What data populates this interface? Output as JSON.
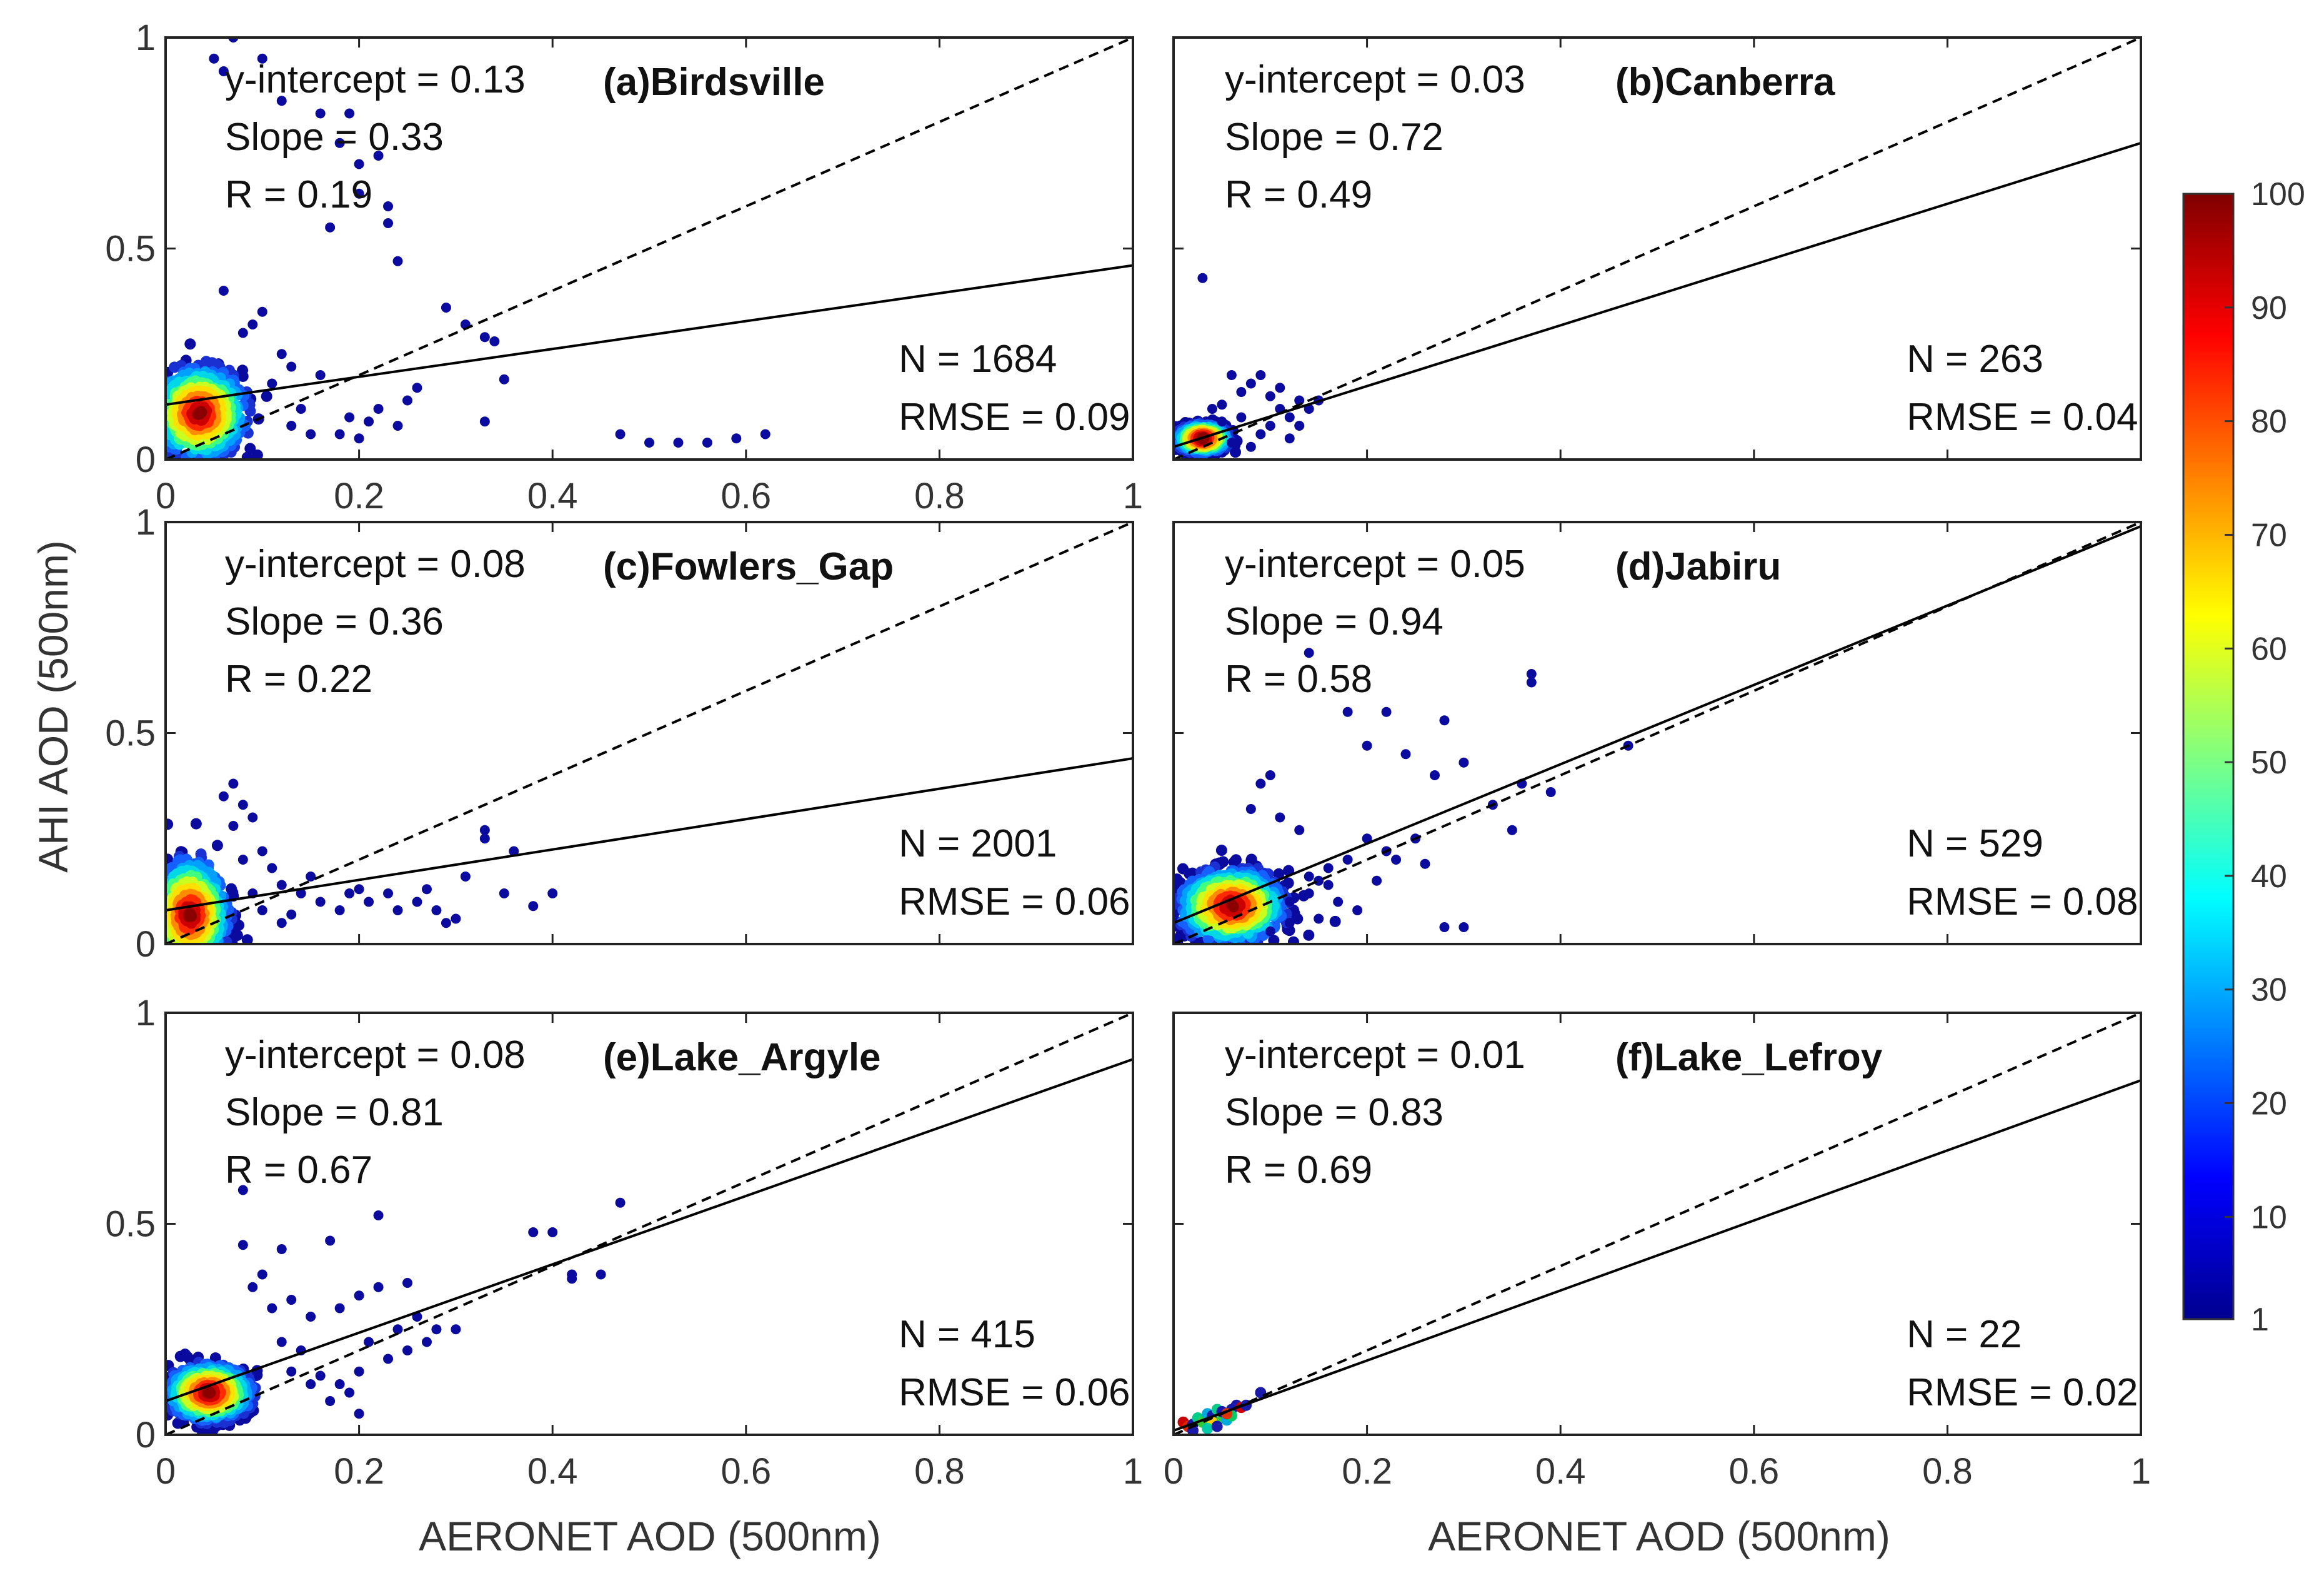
{
  "figure": {
    "ylabel": "AHI AOD (500nm)",
    "xlabel": "AERONET AOD (500nm)"
  },
  "chart_data": [
    {
      "type": "scatter",
      "title": "(a)Birdsville",
      "stats": {
        "intercept_text": "y-intercept = 0.13",
        "slope_text": "Slope = 0.33",
        "r_text": "R = 0.19",
        "n_text": "N = 1684",
        "rmse_text": "RMSE = 0.09"
      },
      "fit": {
        "intercept": 0.13,
        "slope": 0.33
      },
      "xlim": [
        0,
        1
      ],
      "ylim": [
        0,
        1
      ],
      "xticks": [
        0,
        0.2,
        0.4,
        0.6,
        0.8,
        1
      ],
      "yticks": [
        0,
        0.5,
        1
      ],
      "xtick_labels": [
        "0",
        "0.2",
        "0.4",
        "0.6",
        "0.8",
        "1"
      ],
      "ytick_labels": [
        "0",
        "0.5",
        "1"
      ],
      "cluster": {
        "x": 0.035,
        "y": 0.11,
        "sx": 0.022,
        "sy": 0.05
      },
      "outliers": [
        [
          0.05,
          0.95
        ],
        [
          0.07,
          1.0
        ],
        [
          0.1,
          0.95
        ],
        [
          0.06,
          0.92
        ],
        [
          0.12,
          0.85
        ],
        [
          0.16,
          0.82
        ],
        [
          0.19,
          0.82
        ],
        [
          0.18,
          0.75
        ],
        [
          0.2,
          0.7
        ],
        [
          0.22,
          0.72
        ],
        [
          0.23,
          0.6
        ],
        [
          0.23,
          0.56
        ],
        [
          0.17,
          0.55
        ],
        [
          0.2,
          0.63
        ],
        [
          0.24,
          0.47
        ],
        [
          0.29,
          0.36
        ],
        [
          0.31,
          0.32
        ],
        [
          0.33,
          0.29
        ],
        [
          0.34,
          0.28
        ],
        [
          0.35,
          0.19
        ],
        [
          0.33,
          0.09
        ],
        [
          0.26,
          0.17
        ],
        [
          0.25,
          0.14
        ],
        [
          0.22,
          0.12
        ],
        [
          0.2,
          0.05
        ],
        [
          0.18,
          0.06
        ],
        [
          0.16,
          0.2
        ],
        [
          0.15,
          0.06
        ],
        [
          0.14,
          0.12
        ],
        [
          0.13,
          0.08
        ],
        [
          0.21,
          0.09
        ],
        [
          0.47,
          0.06
        ],
        [
          0.5,
          0.04
        ],
        [
          0.53,
          0.04
        ],
        [
          0.56,
          0.04
        ],
        [
          0.59,
          0.05
        ],
        [
          0.62,
          0.06
        ],
        [
          0.11,
          0.18
        ],
        [
          0.12,
          0.25
        ],
        [
          0.09,
          0.32
        ],
        [
          0.08,
          0.3
        ],
        [
          0.06,
          0.4
        ],
        [
          0.1,
          0.35
        ],
        [
          0.13,
          0.22
        ],
        [
          0.19,
          0.1
        ],
        [
          0.24,
          0.08
        ]
      ],
      "outlier_color": "#0a0a9e"
    },
    {
      "type": "scatter",
      "title": "(b)Canberra",
      "stats": {
        "intercept_text": "y-intercept = 0.03",
        "slope_text": "Slope = 0.72",
        "r_text": "R = 0.49",
        "n_text": "N = 263",
        "rmse_text": "RMSE = 0.04"
      },
      "fit": {
        "intercept": 0.03,
        "slope": 0.72
      },
      "xlim": [
        0,
        1
      ],
      "ylim": [
        0,
        1
      ],
      "xticks": [
        0,
        0.2,
        0.4,
        0.6,
        0.8,
        1
      ],
      "yticks": [
        0,
        0.5,
        1
      ],
      "xtick_labels": [],
      "ytick_labels": [],
      "cluster": {
        "x": 0.03,
        "y": 0.05,
        "sx": 0.012,
        "sy": 0.015
      },
      "outliers": [
        [
          0.03,
          0.43
        ],
        [
          0.06,
          0.2
        ],
        [
          0.08,
          0.18
        ],
        [
          0.09,
          0.2
        ],
        [
          0.1,
          0.15
        ],
        [
          0.11,
          0.12
        ],
        [
          0.12,
          0.1
        ],
        [
          0.13,
          0.14
        ],
        [
          0.14,
          0.12
        ],
        [
          0.1,
          0.08
        ],
        [
          0.09,
          0.06
        ],
        [
          0.07,
          0.1
        ],
        [
          0.05,
          0.13
        ],
        [
          0.04,
          0.12
        ],
        [
          0.06,
          0.04
        ],
        [
          0.08,
          0.03
        ],
        [
          0.12,
          0.05
        ],
        [
          0.11,
          0.17
        ],
        [
          0.05,
          0.09
        ],
        [
          0.07,
          0.16
        ],
        [
          0.13,
          0.08
        ],
        [
          0.15,
          0.14
        ]
      ],
      "outlier_color": "#0a0a9e"
    },
    {
      "type": "scatter",
      "title": "(c)Fowlers_Gap",
      "stats": {
        "intercept_text": "y-intercept = 0.08",
        "slope_text": "Slope = 0.36",
        "r_text": "R = 0.22",
        "n_text": "N = 2001",
        "rmse_text": "RMSE = 0.06"
      },
      "fit": {
        "intercept": 0.08,
        "slope": 0.36
      },
      "xlim": [
        0,
        1
      ],
      "ylim": [
        0,
        1
      ],
      "xticks": [
        0,
        0.2,
        0.4,
        0.6,
        0.8,
        1
      ],
      "yticks": [
        0,
        0.5,
        1
      ],
      "xtick_labels": [],
      "ytick_labels": [
        "0",
        "0.5",
        "1"
      ],
      "cluster": {
        "x": 0.025,
        "y": 0.07,
        "sx": 0.018,
        "sy": 0.06
      },
      "outliers": [
        [
          0.07,
          0.38
        ],
        [
          0.06,
          0.35
        ],
        [
          0.08,
          0.33
        ],
        [
          0.09,
          0.3
        ],
        [
          0.07,
          0.28
        ],
        [
          0.1,
          0.22
        ],
        [
          0.11,
          0.18
        ],
        [
          0.12,
          0.14
        ],
        [
          0.14,
          0.12
        ],
        [
          0.16,
          0.1
        ],
        [
          0.18,
          0.08
        ],
        [
          0.19,
          0.12
        ],
        [
          0.21,
          0.1
        ],
        [
          0.23,
          0.12
        ],
        [
          0.24,
          0.08
        ],
        [
          0.26,
          0.1
        ],
        [
          0.27,
          0.13
        ],
        [
          0.28,
          0.08
        ],
        [
          0.3,
          0.06
        ],
        [
          0.31,
          0.16
        ],
        [
          0.33,
          0.27
        ],
        [
          0.33,
          0.25
        ],
        [
          0.36,
          0.22
        ],
        [
          0.35,
          0.12
        ],
        [
          0.38,
          0.09
        ],
        [
          0.4,
          0.12
        ],
        [
          0.29,
          0.05
        ],
        [
          0.2,
          0.13
        ],
        [
          0.15,
          0.16
        ],
        [
          0.13,
          0.07
        ],
        [
          0.1,
          0.08
        ],
        [
          0.12,
          0.05
        ],
        [
          0.09,
          0.12
        ],
        [
          0.08,
          0.2
        ]
      ],
      "outlier_color": "#0a0a9e"
    },
    {
      "type": "scatter",
      "title": "(d)Jabiru",
      "stats": {
        "intercept_text": "y-intercept = 0.05",
        "slope_text": "Slope = 0.94",
        "r_text": "R = 0.58",
        "n_text": "N = 529",
        "rmse_text": "RMSE = 0.08"
      },
      "fit": {
        "intercept": 0.05,
        "slope": 0.94
      },
      "xlim": [
        0,
        1
      ],
      "ylim": [
        0,
        1
      ],
      "xticks": [
        0,
        0.2,
        0.4,
        0.6,
        0.8,
        1
      ],
      "yticks": [
        0,
        0.5,
        1
      ],
      "xtick_labels": [],
      "ytick_labels": [],
      "cluster": {
        "x": 0.06,
        "y": 0.09,
        "sx": 0.025,
        "sy": 0.04
      },
      "outliers": [
        [
          0.14,
          0.69
        ],
        [
          0.18,
          0.55
        ],
        [
          0.22,
          0.55
        ],
        [
          0.37,
          0.64
        ],
        [
          0.37,
          0.62
        ],
        [
          0.2,
          0.47
        ],
        [
          0.24,
          0.45
        ],
        [
          0.28,
          0.53
        ],
        [
          0.3,
          0.43
        ],
        [
          0.27,
          0.4
        ],
        [
          0.33,
          0.33
        ],
        [
          0.36,
          0.38
        ],
        [
          0.39,
          0.36
        ],
        [
          0.47,
          0.47
        ],
        [
          0.35,
          0.27
        ],
        [
          0.28,
          0.04
        ],
        [
          0.3,
          0.04
        ],
        [
          0.25,
          0.25
        ],
        [
          0.22,
          0.22
        ],
        [
          0.2,
          0.25
        ],
        [
          0.18,
          0.2
        ],
        [
          0.16,
          0.18
        ],
        [
          0.15,
          0.15
        ],
        [
          0.14,
          0.12
        ],
        [
          0.12,
          0.1
        ],
        [
          0.11,
          0.3
        ],
        [
          0.09,
          0.38
        ],
        [
          0.1,
          0.4
        ],
        [
          0.08,
          0.32
        ],
        [
          0.13,
          0.27
        ],
        [
          0.17,
          0.1
        ],
        [
          0.19,
          0.08
        ],
        [
          0.21,
          0.15
        ],
        [
          0.23,
          0.2
        ],
        [
          0.26,
          0.19
        ],
        [
          0.1,
          0.03
        ],
        [
          0.12,
          0.05
        ],
        [
          0.15,
          0.06
        ],
        [
          0.14,
          0.16
        ],
        [
          0.16,
          0.14
        ]
      ],
      "outlier_color": "#0a0a9e"
    },
    {
      "type": "scatter",
      "title": "(e)Lake_Argyle",
      "stats": {
        "intercept_text": "y-intercept = 0.08",
        "slope_text": "Slope = 0.81",
        "r_text": "R = 0.67",
        "n_text": "N = 415",
        "rmse_text": "RMSE = 0.06"
      },
      "fit": {
        "intercept": 0.08,
        "slope": 0.81
      },
      "xlim": [
        0,
        1
      ],
      "ylim": [
        0,
        1
      ],
      "xticks": [
        0,
        0.2,
        0.4,
        0.6,
        0.8,
        1
      ],
      "yticks": [
        0,
        0.5,
        1
      ],
      "xtick_labels": [
        "0",
        "0.2",
        "0.4",
        "0.6",
        "0.8",
        "1"
      ],
      "ytick_labels": [
        "0",
        "0.5",
        "1"
      ],
      "cluster": {
        "x": 0.045,
        "y": 0.1,
        "sx": 0.02,
        "sy": 0.03
      },
      "outliers": [
        [
          0.08,
          0.58
        ],
        [
          0.22,
          0.52
        ],
        [
          0.47,
          0.55
        ],
        [
          0.38,
          0.48
        ],
        [
          0.4,
          0.48
        ],
        [
          0.17,
          0.46
        ],
        [
          0.08,
          0.45
        ],
        [
          0.12,
          0.44
        ],
        [
          0.1,
          0.38
        ],
        [
          0.09,
          0.35
        ],
        [
          0.13,
          0.32
        ],
        [
          0.11,
          0.3
        ],
        [
          0.15,
          0.28
        ],
        [
          0.18,
          0.3
        ],
        [
          0.2,
          0.33
        ],
        [
          0.22,
          0.35
        ],
        [
          0.25,
          0.36
        ],
        [
          0.26,
          0.28
        ],
        [
          0.28,
          0.25
        ],
        [
          0.25,
          0.2
        ],
        [
          0.23,
          0.18
        ],
        [
          0.2,
          0.15
        ],
        [
          0.19,
          0.1
        ],
        [
          0.17,
          0.08
        ],
        [
          0.15,
          0.12
        ],
        [
          0.14,
          0.2
        ],
        [
          0.12,
          0.22
        ],
        [
          0.27,
          0.22
        ],
        [
          0.3,
          0.25
        ],
        [
          0.42,
          0.38
        ],
        [
          0.45,
          0.38
        ],
        [
          0.42,
          0.37
        ],
        [
          0.2,
          0.05
        ],
        [
          0.18,
          0.12
        ],
        [
          0.16,
          0.14
        ],
        [
          0.13,
          0.15
        ],
        [
          0.21,
          0.22
        ],
        [
          0.24,
          0.25
        ]
      ],
      "outlier_color": "#0a0a9e"
    },
    {
      "type": "scatter",
      "title": "(f)Lake_Lefroy",
      "stats": {
        "intercept_text": "y-intercept = 0.01",
        "slope_text": "Slope = 0.83",
        "r_text": "R = 0.69",
        "n_text": "N = 22",
        "rmse_text": "RMSE = 0.02"
      },
      "fit": {
        "intercept": 0.01,
        "slope": 0.83
      },
      "xlim": [
        0,
        1
      ],
      "ylim": [
        0,
        1
      ],
      "xticks": [
        0,
        0.2,
        0.4,
        0.6,
        0.8,
        1
      ],
      "yticks": [
        0,
        0.5,
        1
      ],
      "xtick_labels": [
        "0",
        "0.2",
        "0.4",
        "0.6",
        "0.8",
        "1"
      ],
      "ytick_labels": [],
      "cluster": null,
      "points_colored": [
        [
          0.01,
          0.03,
          "#cc0000"
        ],
        [
          0.015,
          0.02,
          "#dd2200"
        ],
        [
          0.02,
          0.025,
          "#1a1aaa"
        ],
        [
          0.025,
          0.04,
          "#00cc88"
        ],
        [
          0.03,
          0.03,
          "#33cc33"
        ],
        [
          0.035,
          0.05,
          "#00aadd"
        ],
        [
          0.04,
          0.045,
          "#1a1aaa"
        ],
        [
          0.04,
          0.03,
          "#ffcc00"
        ],
        [
          0.045,
          0.06,
          "#00cc88"
        ],
        [
          0.05,
          0.04,
          "#33cc33"
        ],
        [
          0.05,
          0.055,
          "#1a1aaa"
        ],
        [
          0.055,
          0.035,
          "#00aadd"
        ],
        [
          0.06,
          0.06,
          "#1a1aaa"
        ],
        [
          0.06,
          0.045,
          "#00cc66"
        ],
        [
          0.065,
          0.07,
          "#1a1aaa"
        ],
        [
          0.07,
          0.065,
          "#cc0000"
        ],
        [
          0.075,
          0.07,
          "#1a1aaa"
        ],
        [
          0.09,
          0.1,
          "#1a1aaa"
        ],
        [
          0.035,
          0.015,
          "#00ccaa"
        ],
        [
          0.02,
          0.01,
          "#1a1aaa"
        ],
        [
          0.045,
          0.02,
          "#1a1aaa"
        ],
        [
          0.055,
          0.05,
          "#dd3300"
        ]
      ],
      "outliers": []
    }
  ],
  "colorbar": {
    "min": 1,
    "max": 100,
    "tick_labels": [
      "100",
      "90",
      "80",
      "70",
      "60",
      "50",
      "40",
      "30",
      "20",
      "10",
      "1"
    ],
    "tick_values": [
      100,
      90,
      80,
      70,
      60,
      50,
      40,
      30,
      20,
      10,
      1
    ],
    "colors": [
      "#00008f",
      "#0000ff",
      "#0080ff",
      "#00ffff",
      "#80ff80",
      "#ffff00",
      "#ff8000",
      "#ff0000",
      "#800000"
    ]
  }
}
